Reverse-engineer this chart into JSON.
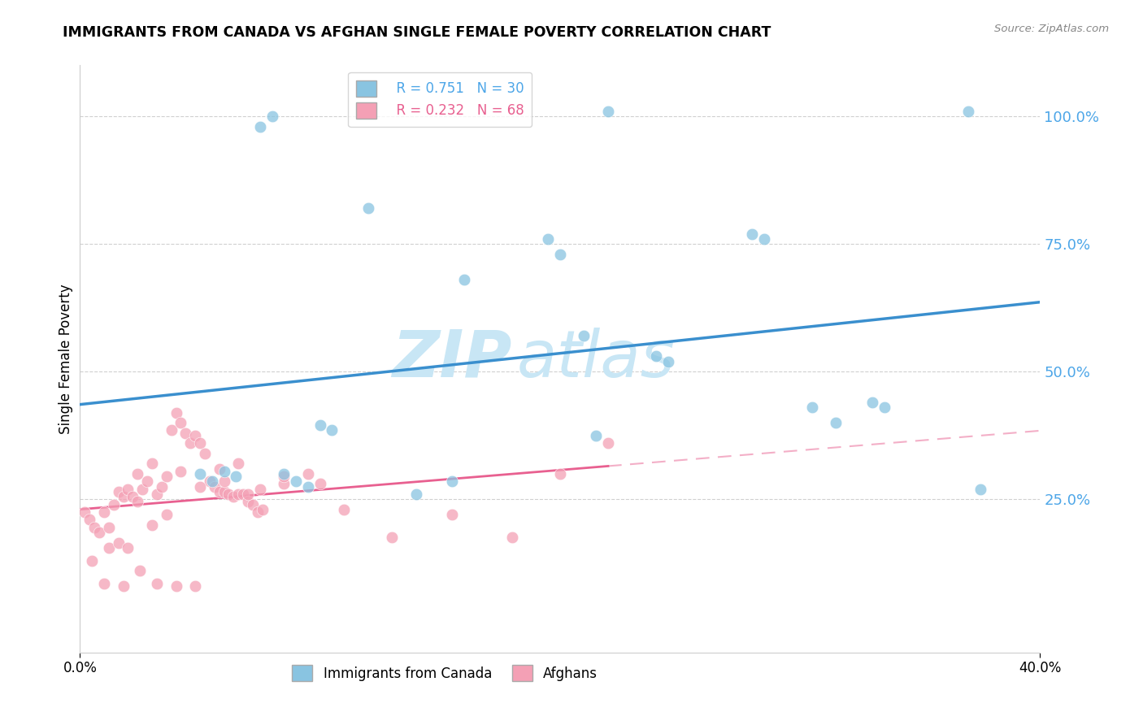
{
  "title": "IMMIGRANTS FROM CANADA VS AFGHAN SINGLE FEMALE POVERTY CORRELATION CHART",
  "source": "Source: ZipAtlas.com",
  "ylabel": "Single Female Poverty",
  "canada_R": 0.751,
  "canada_N": 30,
  "afghan_R": 0.232,
  "afghan_N": 68,
  "canada_color": "#89c4e1",
  "afghan_color": "#f4a0b5",
  "trend_canada_color": "#3a8fce",
  "trend_afghan_color": "#e86090",
  "watermark_zip": "ZIP",
  "watermark_atlas": "atlas",
  "watermark_color": "#c8e6f5",
  "xlim": [
    0.0,
    0.4
  ],
  "ylim": [
    -0.05,
    1.1
  ],
  "ytick_values": [
    0.25,
    0.5,
    0.75,
    1.0
  ],
  "ytick_labels": [
    "25.0%",
    "50.0%",
    "75.0%",
    "100.0%"
  ],
  "canada_x": [
    0.075,
    0.08,
    0.12,
    0.16,
    0.195,
    0.2,
    0.21,
    0.24,
    0.245,
    0.28,
    0.285,
    0.305,
    0.315,
    0.33,
    0.335,
    0.375,
    0.05,
    0.055,
    0.06,
    0.065,
    0.085,
    0.09,
    0.095,
    0.1,
    0.105,
    0.14,
    0.155,
    0.215,
    0.22,
    0.37
  ],
  "canada_y": [
    0.98,
    1.0,
    0.82,
    0.68,
    0.76,
    0.73,
    0.57,
    0.53,
    0.52,
    0.77,
    0.76,
    0.43,
    0.4,
    0.44,
    0.43,
    0.27,
    0.3,
    0.285,
    0.305,
    0.295,
    0.3,
    0.285,
    0.275,
    0.395,
    0.385,
    0.26,
    0.285,
    0.375,
    1.01,
    1.01
  ],
  "afghan_x": [
    0.002,
    0.004,
    0.006,
    0.008,
    0.01,
    0.012,
    0.014,
    0.016,
    0.018,
    0.02,
    0.022,
    0.024,
    0.026,
    0.028,
    0.03,
    0.032,
    0.034,
    0.036,
    0.038,
    0.04,
    0.042,
    0.044,
    0.046,
    0.048,
    0.05,
    0.052,
    0.054,
    0.056,
    0.058,
    0.06,
    0.062,
    0.064,
    0.066,
    0.068,
    0.07,
    0.072,
    0.074,
    0.076,
    0.012,
    0.016,
    0.02,
    0.024,
    0.03,
    0.036,
    0.042,
    0.05,
    0.058,
    0.066,
    0.075,
    0.085,
    0.095,
    0.11,
    0.13,
    0.155,
    0.18,
    0.2,
    0.22,
    0.005,
    0.01,
    0.018,
    0.025,
    0.032,
    0.04,
    0.048,
    0.06,
    0.07,
    0.085,
    0.1
  ],
  "afghan_y": [
    0.225,
    0.21,
    0.195,
    0.185,
    0.225,
    0.195,
    0.24,
    0.265,
    0.255,
    0.27,
    0.255,
    0.3,
    0.27,
    0.285,
    0.32,
    0.26,
    0.275,
    0.295,
    0.385,
    0.42,
    0.4,
    0.38,
    0.36,
    0.375,
    0.36,
    0.34,
    0.285,
    0.275,
    0.265,
    0.265,
    0.26,
    0.255,
    0.26,
    0.26,
    0.245,
    0.24,
    0.225,
    0.23,
    0.155,
    0.165,
    0.155,
    0.245,
    0.2,
    0.22,
    0.305,
    0.275,
    0.31,
    0.32,
    0.27,
    0.28,
    0.3,
    0.23,
    0.175,
    0.22,
    0.175,
    0.3,
    0.36,
    0.13,
    0.085,
    0.08,
    0.11,
    0.085,
    0.08,
    0.08,
    0.285,
    0.26,
    0.295,
    0.28
  ]
}
